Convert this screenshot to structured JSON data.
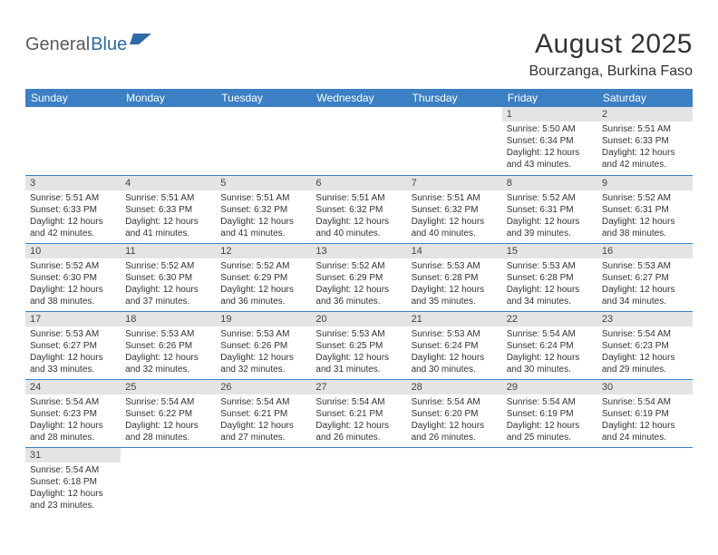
{
  "logo": {
    "part1": "General",
    "part2": "Blue",
    "shape_color": "#2f6aa8"
  },
  "title": "August 2025",
  "location": "Bourzanga, Burkina Faso",
  "colors": {
    "header_bg": "#3b7fc4",
    "header_text": "#ffffff",
    "daynum_bg": "#e4e4e4",
    "cell_border": "#3b7fc4",
    "body_text": "#333333"
  },
  "weekdays": [
    "Sunday",
    "Monday",
    "Tuesday",
    "Wednesday",
    "Thursday",
    "Friday",
    "Saturday"
  ],
  "cells": [
    {
      "n": "",
      "sr": "",
      "ss": "",
      "dl": ""
    },
    {
      "n": "",
      "sr": "",
      "ss": "",
      "dl": ""
    },
    {
      "n": "",
      "sr": "",
      "ss": "",
      "dl": ""
    },
    {
      "n": "",
      "sr": "",
      "ss": "",
      "dl": ""
    },
    {
      "n": "",
      "sr": "",
      "ss": "",
      "dl": ""
    },
    {
      "n": "1",
      "sr": "Sunrise: 5:50 AM",
      "ss": "Sunset: 6:34 PM",
      "dl": "Daylight: 12 hours and 43 minutes."
    },
    {
      "n": "2",
      "sr": "Sunrise: 5:51 AM",
      "ss": "Sunset: 6:33 PM",
      "dl": "Daylight: 12 hours and 42 minutes."
    },
    {
      "n": "3",
      "sr": "Sunrise: 5:51 AM",
      "ss": "Sunset: 6:33 PM",
      "dl": "Daylight: 12 hours and 42 minutes."
    },
    {
      "n": "4",
      "sr": "Sunrise: 5:51 AM",
      "ss": "Sunset: 6:33 PM",
      "dl": "Daylight: 12 hours and 41 minutes."
    },
    {
      "n": "5",
      "sr": "Sunrise: 5:51 AM",
      "ss": "Sunset: 6:32 PM",
      "dl": "Daylight: 12 hours and 41 minutes."
    },
    {
      "n": "6",
      "sr": "Sunrise: 5:51 AM",
      "ss": "Sunset: 6:32 PM",
      "dl": "Daylight: 12 hours and 40 minutes."
    },
    {
      "n": "7",
      "sr": "Sunrise: 5:51 AM",
      "ss": "Sunset: 6:32 PM",
      "dl": "Daylight: 12 hours and 40 minutes."
    },
    {
      "n": "8",
      "sr": "Sunrise: 5:52 AM",
      "ss": "Sunset: 6:31 PM",
      "dl": "Daylight: 12 hours and 39 minutes."
    },
    {
      "n": "9",
      "sr": "Sunrise: 5:52 AM",
      "ss": "Sunset: 6:31 PM",
      "dl": "Daylight: 12 hours and 38 minutes."
    },
    {
      "n": "10",
      "sr": "Sunrise: 5:52 AM",
      "ss": "Sunset: 6:30 PM",
      "dl": "Daylight: 12 hours and 38 minutes."
    },
    {
      "n": "11",
      "sr": "Sunrise: 5:52 AM",
      "ss": "Sunset: 6:30 PM",
      "dl": "Daylight: 12 hours and 37 minutes."
    },
    {
      "n": "12",
      "sr": "Sunrise: 5:52 AM",
      "ss": "Sunset: 6:29 PM",
      "dl": "Daylight: 12 hours and 36 minutes."
    },
    {
      "n": "13",
      "sr": "Sunrise: 5:52 AM",
      "ss": "Sunset: 6:29 PM",
      "dl": "Daylight: 12 hours and 36 minutes."
    },
    {
      "n": "14",
      "sr": "Sunrise: 5:53 AM",
      "ss": "Sunset: 6:28 PM",
      "dl": "Daylight: 12 hours and 35 minutes."
    },
    {
      "n": "15",
      "sr": "Sunrise: 5:53 AM",
      "ss": "Sunset: 6:28 PM",
      "dl": "Daylight: 12 hours and 34 minutes."
    },
    {
      "n": "16",
      "sr": "Sunrise: 5:53 AM",
      "ss": "Sunset: 6:27 PM",
      "dl": "Daylight: 12 hours and 34 minutes."
    },
    {
      "n": "17",
      "sr": "Sunrise: 5:53 AM",
      "ss": "Sunset: 6:27 PM",
      "dl": "Daylight: 12 hours and 33 minutes."
    },
    {
      "n": "18",
      "sr": "Sunrise: 5:53 AM",
      "ss": "Sunset: 6:26 PM",
      "dl": "Daylight: 12 hours and 32 minutes."
    },
    {
      "n": "19",
      "sr": "Sunrise: 5:53 AM",
      "ss": "Sunset: 6:26 PM",
      "dl": "Daylight: 12 hours and 32 minutes."
    },
    {
      "n": "20",
      "sr": "Sunrise: 5:53 AM",
      "ss": "Sunset: 6:25 PM",
      "dl": "Daylight: 12 hours and 31 minutes."
    },
    {
      "n": "21",
      "sr": "Sunrise: 5:53 AM",
      "ss": "Sunset: 6:24 PM",
      "dl": "Daylight: 12 hours and 30 minutes."
    },
    {
      "n": "22",
      "sr": "Sunrise: 5:54 AM",
      "ss": "Sunset: 6:24 PM",
      "dl": "Daylight: 12 hours and 30 minutes."
    },
    {
      "n": "23",
      "sr": "Sunrise: 5:54 AM",
      "ss": "Sunset: 6:23 PM",
      "dl": "Daylight: 12 hours and 29 minutes."
    },
    {
      "n": "24",
      "sr": "Sunrise: 5:54 AM",
      "ss": "Sunset: 6:23 PM",
      "dl": "Daylight: 12 hours and 28 minutes."
    },
    {
      "n": "25",
      "sr": "Sunrise: 5:54 AM",
      "ss": "Sunset: 6:22 PM",
      "dl": "Daylight: 12 hours and 28 minutes."
    },
    {
      "n": "26",
      "sr": "Sunrise: 5:54 AM",
      "ss": "Sunset: 6:21 PM",
      "dl": "Daylight: 12 hours and 27 minutes."
    },
    {
      "n": "27",
      "sr": "Sunrise: 5:54 AM",
      "ss": "Sunset: 6:21 PM",
      "dl": "Daylight: 12 hours and 26 minutes."
    },
    {
      "n": "28",
      "sr": "Sunrise: 5:54 AM",
      "ss": "Sunset: 6:20 PM",
      "dl": "Daylight: 12 hours and 26 minutes."
    },
    {
      "n": "29",
      "sr": "Sunrise: 5:54 AM",
      "ss": "Sunset: 6:19 PM",
      "dl": "Daylight: 12 hours and 25 minutes."
    },
    {
      "n": "30",
      "sr": "Sunrise: 5:54 AM",
      "ss": "Sunset: 6:19 PM",
      "dl": "Daylight: 12 hours and 24 minutes."
    },
    {
      "n": "31",
      "sr": "Sunrise: 5:54 AM",
      "ss": "Sunset: 6:18 PM",
      "dl": "Daylight: 12 hours and 23 minutes."
    },
    {
      "n": "",
      "sr": "",
      "ss": "",
      "dl": ""
    },
    {
      "n": "",
      "sr": "",
      "ss": "",
      "dl": ""
    },
    {
      "n": "",
      "sr": "",
      "ss": "",
      "dl": ""
    },
    {
      "n": "",
      "sr": "",
      "ss": "",
      "dl": ""
    },
    {
      "n": "",
      "sr": "",
      "ss": "",
      "dl": ""
    },
    {
      "n": "",
      "sr": "",
      "ss": "",
      "dl": ""
    }
  ]
}
